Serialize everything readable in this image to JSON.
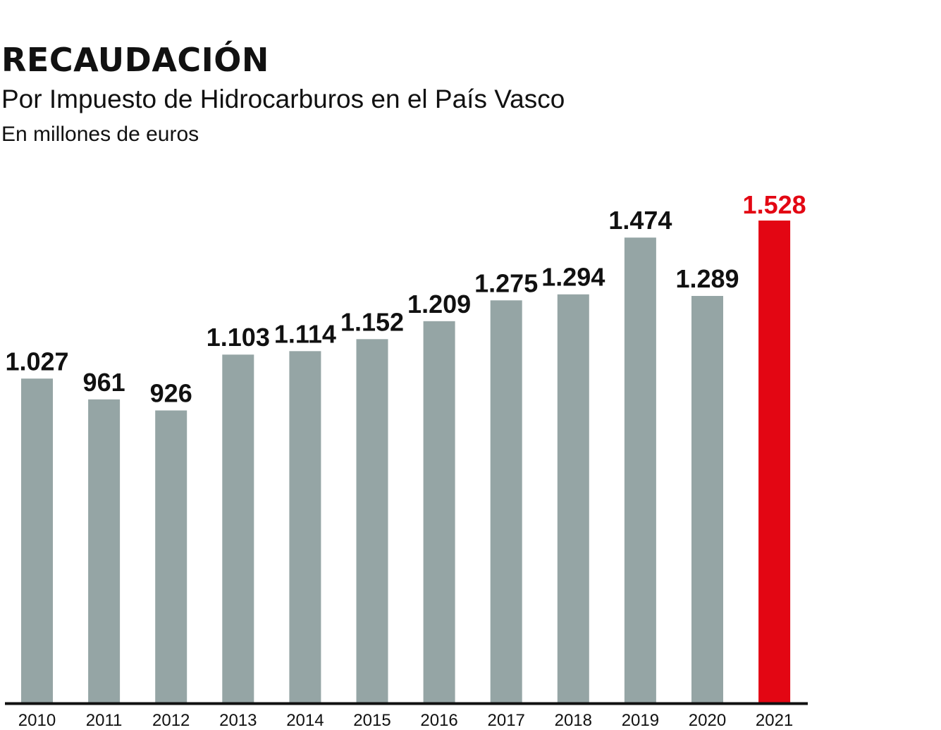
{
  "chart_data": {
    "type": "bar",
    "title": "RECAUDACIÓN",
    "subtitle": "Por Impuesto de Hidrocarburos en el País Vasco",
    "unit": "En millones de euros",
    "categories": [
      "2010",
      "2011",
      "2012",
      "2013",
      "2014",
      "2015",
      "2016",
      "2017",
      "2018",
      "2019",
      "2020",
      "2021"
    ],
    "values": [
      1027,
      961,
      926,
      1103,
      1114,
      1152,
      1209,
      1275,
      1294,
      1474,
      1289,
      1528
    ],
    "value_labels": [
      "1.027",
      "961",
      "926",
      "1.103",
      "1.114",
      "1.152",
      "1.209",
      "1.275",
      "1.294",
      "1.474",
      "1.289",
      "1.528"
    ],
    "highlight_index": 11,
    "ylim": [
      0,
      1528
    ],
    "grid": false,
    "xlabel": "",
    "ylabel": "",
    "colors": {
      "bar": "#95a5a5",
      "highlight": "#e30613",
      "text": "#111111"
    }
  }
}
